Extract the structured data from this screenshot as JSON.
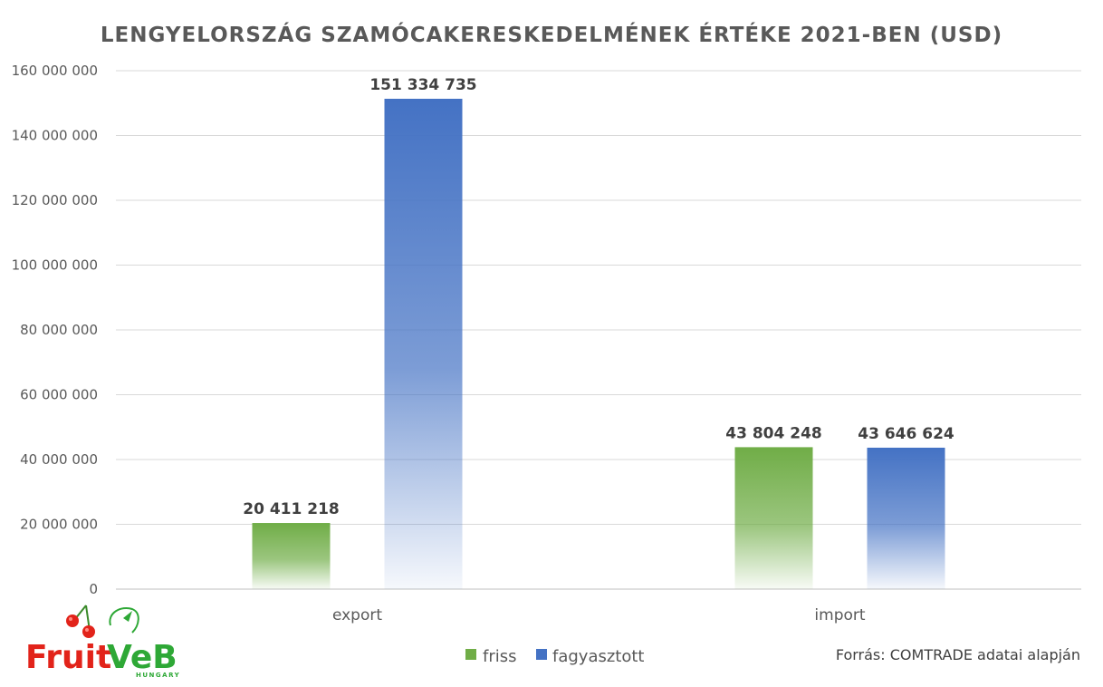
{
  "chart_data": {
    "type": "bar",
    "title": "LENGYELORSZÁG SZAMÓCAKERESKEDELMÉNEK ÉRTÉKE 2021-BEN (USD)",
    "categories": [
      "export",
      "import"
    ],
    "series": [
      {
        "name": "friss",
        "color": "#70AD47",
        "values": [
          20411218,
          43804248
        ],
        "labels": [
          "20 411 218",
          "43 804 248"
        ]
      },
      {
        "name": "fagyasztott",
        "color": "#4472C4",
        "values": [
          151334735,
          43646624
        ],
        "labels": [
          "151 334 735",
          "43 646 624"
        ]
      }
    ],
    "ylim": [
      0,
      160000000
    ],
    "yticks": [
      0,
      20000000,
      40000000,
      60000000,
      80000000,
      100000000,
      120000000,
      140000000,
      160000000
    ],
    "ytick_labels": [
      "0",
      "20 000 000",
      "40 000 000",
      "60 000 000",
      "80 000 000",
      "100 000 000",
      "120 000 000",
      "140 000 000",
      "160 000 000"
    ],
    "grid": true,
    "legend_position": "bottom",
    "bar_fill": "gradient-fading-to-white-at-base"
  },
  "source_note": "Forrás: COMTRADE adatai alapján",
  "logo": {
    "brand": "FruitVeB",
    "sub": "HUNGARY",
    "colors": {
      "fruit": "#E2231A",
      "veb": "#2EA836"
    }
  }
}
